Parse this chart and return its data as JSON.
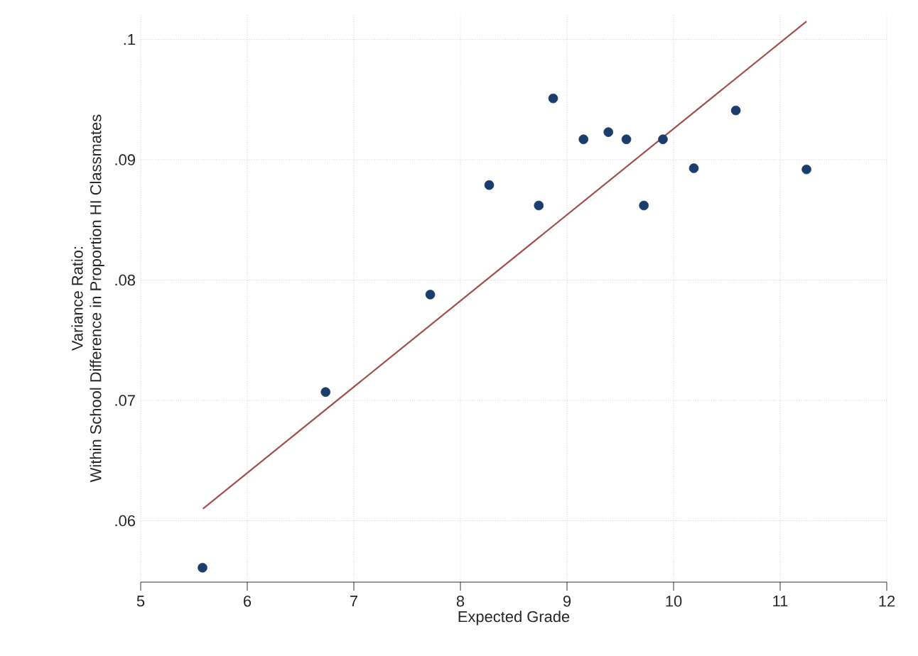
{
  "chart_data": {
    "type": "scatter",
    "xlabel": "Expected Grade",
    "ylabel": "Variance Ratio:\nWithin School Difference in Proportion HI Classmates",
    "xlim": [
      5,
      12
    ],
    "ylim": [
      0.0549,
      0.1021
    ],
    "xticks": [
      5,
      6,
      7,
      8,
      9,
      10,
      11,
      12
    ],
    "yticks": [
      {
        "value": 0.06,
        "label": ".06"
      },
      {
        "value": 0.07,
        "label": ".07"
      },
      {
        "value": 0.08,
        "label": ".08"
      },
      {
        "value": 0.09,
        "label": ".09"
      },
      {
        "value": 0.1,
        "label": ".1"
      }
    ],
    "grid": true,
    "series": [
      {
        "type": "scatter",
        "marker": "circle",
        "color": "#1a3d6b",
        "x": [
          5.58,
          6.735,
          7.717,
          8.27,
          8.735,
          8.87,
          9.155,
          9.388,
          9.557,
          9.721,
          9.9,
          10.19,
          10.584,
          11.247
        ],
        "values": [
          0.0561,
          0.0707,
          0.0788,
          0.0879,
          0.0862,
          0.0951,
          0.0917,
          0.0923,
          0.0917,
          0.0862,
          0.0917,
          0.0893,
          0.0941,
          0.0892
        ]
      },
      {
        "type": "line",
        "color": "#a0524f",
        "x": [
          5.584,
          11.247
        ],
        "values": [
          0.061,
          0.1015
        ]
      }
    ]
  }
}
